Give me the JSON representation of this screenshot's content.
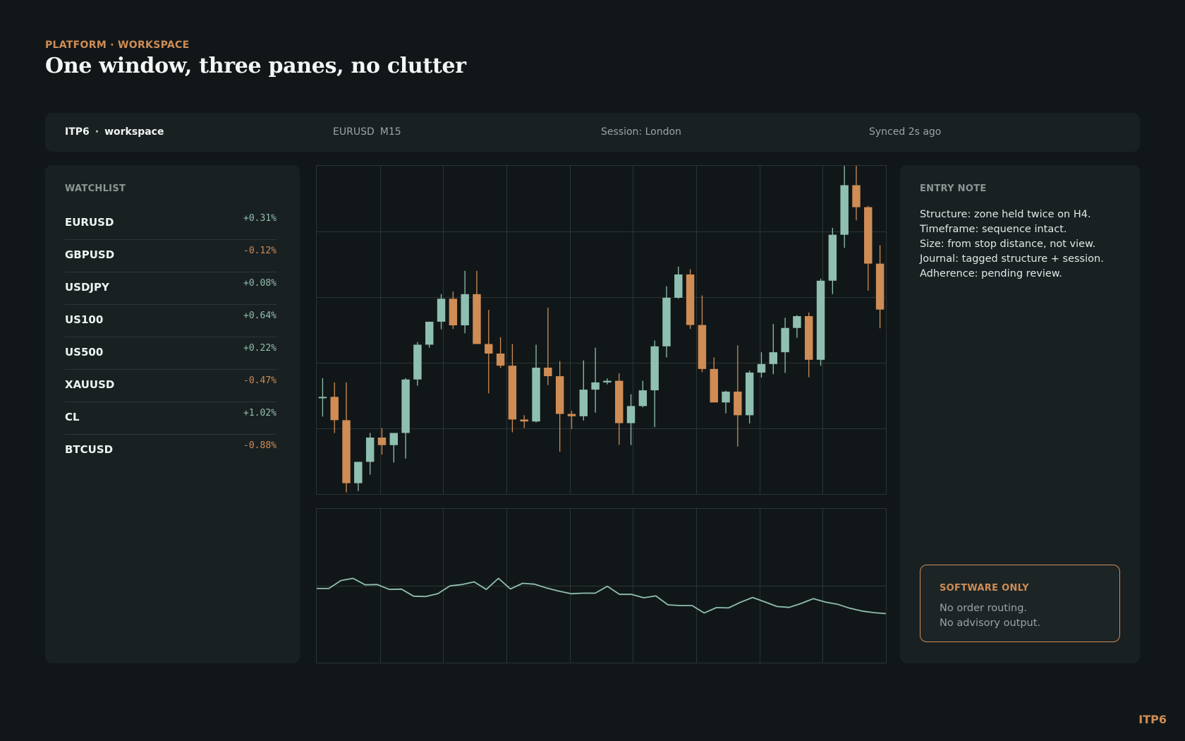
{
  "header": {
    "eyebrow": "PLATFORM · WORKSPACE",
    "title": "One window, three panes, no clutter"
  },
  "topbar": {
    "brand": "ITP6",
    "separator": "·",
    "workspace": "workspace",
    "symbol": "EURUSD",
    "timeframe": "M15",
    "session": "Session: London",
    "synced": "Synced 2s ago"
  },
  "watchlist": {
    "heading": "WATCHLIST",
    "items": [
      {
        "symbol": "EURUSD",
        "change": "+0.31%",
        "direction": "up"
      },
      {
        "symbol": "GBPUSD",
        "change": "-0.12%",
        "direction": "down"
      },
      {
        "symbol": "USDJPY",
        "change": "+0.08%",
        "direction": "up"
      },
      {
        "symbol": "US100",
        "change": "+0.64%",
        "direction": "up"
      },
      {
        "symbol": "US500",
        "change": "+0.22%",
        "direction": "up"
      },
      {
        "symbol": "XAUUSD",
        "change": "-0.47%",
        "direction": "down"
      },
      {
        "symbol": "CL",
        "change": "+1.02%",
        "direction": "up"
      },
      {
        "symbol": "BTCUSD",
        "change": "-0.88%",
        "direction": "down"
      }
    ]
  },
  "note": {
    "heading": "ENTRY NOTE",
    "lines": [
      "Structure: zone held twice on H4.",
      "Timeframe: sequence intact.",
      "Size: from stop distance, not view.",
      "Journal: tagged structure + session.",
      "Adherence: pending review."
    ],
    "badge_title": "SOFTWARE ONLY",
    "badge_lines": [
      "No order routing.",
      "No advisory output."
    ]
  },
  "colors": {
    "up": "#8fbfb0",
    "down": "#cf8c55",
    "grid": "#2c3436",
    "accent": "#cf8c55"
  },
  "chart_data": [
    {
      "type": "candlestick",
      "title": "",
      "grid": true,
      "ylim": [
        0,
        100
      ],
      "candles": [
        {
          "o": 29.6,
          "h": 35.3,
          "l": 23.6,
          "c": 29.6
        },
        {
          "o": 29.6,
          "h": 34.0,
          "l": 18.6,
          "c": 22.5
        },
        {
          "o": 22.5,
          "h": 34.0,
          "l": 0.5,
          "c": 3.3
        },
        {
          "o": 3.3,
          "h": 9.6,
          "l": 0.9,
          "c": 9.8
        },
        {
          "o": 9.8,
          "h": 18.6,
          "l": 5.9,
          "c": 17.2
        },
        {
          "o": 17.2,
          "h": 20.1,
          "l": 12.0,
          "c": 14.9
        },
        {
          "o": 14.9,
          "h": 18.6,
          "l": 9.6,
          "c": 18.6
        },
        {
          "o": 18.6,
          "h": 35.3,
          "l": 10.8,
          "c": 34.9
        },
        {
          "o": 34.9,
          "h": 46.3,
          "l": 33.0,
          "c": 45.5
        },
        {
          "o": 45.5,
          "h": 52.1,
          "l": 44.6,
          "c": 52.5
        },
        {
          "o": 52.5,
          "h": 60.9,
          "l": 50.2,
          "c": 59.5
        },
        {
          "o": 59.5,
          "h": 61.7,
          "l": 50.3,
          "c": 51.4
        },
        {
          "o": 51.4,
          "h": 68.0,
          "l": 49.0,
          "c": 60.9
        },
        {
          "o": 60.9,
          "h": 68.0,
          "l": 45.7,
          "c": 45.7
        },
        {
          "o": 45.7,
          "h": 56.1,
          "l": 30.7,
          "c": 42.8
        },
        {
          "o": 42.8,
          "h": 47.8,
          "l": 38.4,
          "c": 39.1
        },
        {
          "o": 39.1,
          "h": 45.7,
          "l": 18.8,
          "c": 22.7
        },
        {
          "o": 22.7,
          "h": 24.0,
          "l": 20.1,
          "c": 22.1
        },
        {
          "o": 22.1,
          "h": 45.5,
          "l": 21.8,
          "c": 38.5
        },
        {
          "o": 38.5,
          "h": 56.8,
          "l": 33.2,
          "c": 35.9
        },
        {
          "o": 35.9,
          "h": 40.5,
          "l": 12.9,
          "c": 24.4
        },
        {
          "o": 24.4,
          "h": 25.4,
          "l": 19.8,
          "c": 23.7
        },
        {
          "o": 23.7,
          "h": 40.7,
          "l": 22.4,
          "c": 31.8
        },
        {
          "o": 31.8,
          "h": 44.6,
          "l": 24.8,
          "c": 34.0
        },
        {
          "o": 34.0,
          "h": 35.2,
          "l": 33.4,
          "c": 34.5
        },
        {
          "o": 34.5,
          "h": 36.8,
          "l": 15.0,
          "c": 21.6
        },
        {
          "o": 21.6,
          "h": 30.4,
          "l": 14.9,
          "c": 26.8
        },
        {
          "o": 26.8,
          "h": 34.5,
          "l": 26.4,
          "c": 31.6
        },
        {
          "o": 31.6,
          "h": 46.8,
          "l": 20.4,
          "c": 45.0
        },
        {
          "o": 45.0,
          "h": 63.3,
          "l": 41.6,
          "c": 59.8
        },
        {
          "o": 59.8,
          "h": 69.3,
          "l": 59.5,
          "c": 66.9
        },
        {
          "o": 66.9,
          "h": 68.5,
          "l": 50.3,
          "c": 51.5
        },
        {
          "o": 51.5,
          "h": 60.5,
          "l": 37.1,
          "c": 38.1
        },
        {
          "o": 38.1,
          "h": 41.6,
          "l": 27.9,
          "c": 27.9
        },
        {
          "o": 27.9,
          "h": 31.5,
          "l": 24.6,
          "c": 31.2
        },
        {
          "o": 31.2,
          "h": 45.3,
          "l": 14.5,
          "c": 24.0
        },
        {
          "o": 24.0,
          "h": 37.6,
          "l": 21.5,
          "c": 37.0
        },
        {
          "o": 37.0,
          "h": 43.2,
          "l": 35.5,
          "c": 39.6
        },
        {
          "o": 39.6,
          "h": 51.8,
          "l": 36.5,
          "c": 43.2
        },
        {
          "o": 43.2,
          "h": 53.7,
          "l": 36.9,
          "c": 50.6
        },
        {
          "o": 50.6,
          "h": 54.5,
          "l": 47.6,
          "c": 54.2
        },
        {
          "o": 54.2,
          "h": 55.3,
          "l": 35.6,
          "c": 40.9
        },
        {
          "o": 40.9,
          "h": 65.6,
          "l": 39.1,
          "c": 65.0
        },
        {
          "o": 65.0,
          "h": 81.1,
          "l": 60.9,
          "c": 79.0
        },
        {
          "o": 79.0,
          "h": 100.0,
          "l": 75.0,
          "c": 94.1
        },
        {
          "o": 94.1,
          "h": 100.0,
          "l": 83.4,
          "c": 87.4
        },
        {
          "o": 87.4,
          "h": 87.8,
          "l": 62.0,
          "c": 70.2
        },
        {
          "o": 70.2,
          "h": 75.8,
          "l": 50.5,
          "c": 56.2
        }
      ]
    },
    {
      "type": "line",
      "title": "",
      "grid": true,
      "ylim": [
        0,
        100
      ],
      "series": [
        {
          "values": [
            48.2,
            48.2,
            53.4,
            54.8,
            50.6,
            50.8,
            47.6,
            47.8,
            43.2,
            43.0,
            44.8,
            49.9,
            50.8,
            52.5,
            47.6,
            54.8,
            47.9,
            51.6,
            51.0,
            48.5,
            46.5,
            44.8,
            45.2,
            45.2,
            49.7,
            44.4,
            44.4,
            42.2,
            43.4,
            37.6,
            37.1,
            37.1,
            32.3,
            35.8,
            35.6,
            39.3,
            42.4,
            39.5,
            36.5,
            35.9,
            38.5,
            41.6,
            39.4,
            38.0,
            35.4,
            33.6,
            32.5,
            31.9
          ]
        }
      ]
    }
  ]
}
